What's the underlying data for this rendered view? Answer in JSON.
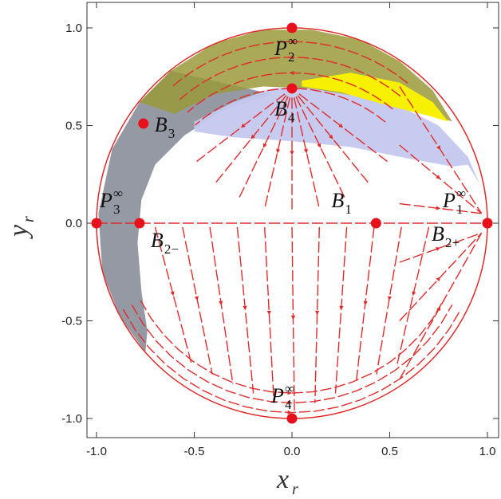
{
  "chart_data": {
    "type": "scatter",
    "title": "",
    "xlabel": {
      "main": "x",
      "sub": "r"
    },
    "ylabel": {
      "main": "y",
      "sub": "r"
    },
    "xlim": [
      -1.05,
      1.05
    ],
    "ylim": [
      -1.05,
      1.05
    ],
    "xticks": [
      "-1.0",
      "-0.5",
      "0.0",
      "0.5",
      "1.0"
    ],
    "xtick_values": [
      -1.0,
      -0.5,
      0.0,
      0.5,
      1.0
    ],
    "yticks": [
      "1.0",
      "0.5",
      "0.0",
      "-0.5",
      "-1.0"
    ],
    "ytick_values": [
      1.0,
      0.5,
      0.0,
      -0.5,
      -1.0
    ],
    "grid": false,
    "boundary": "unit circle",
    "colors": {
      "stream": "#e02b2b",
      "point": "#e8101a",
      "olive_region": "#9a9a3a",
      "yellow_region": "#f7f000",
      "lavender_region": "#c4c8ef",
      "gray_region": "#8e939e"
    },
    "critical_points": [
      {
        "name": "P",
        "sup": "∞",
        "sub": "1",
        "x": 1.0,
        "y": 0.0,
        "label_pos": "upper-left"
      },
      {
        "name": "P",
        "sup": "∞",
        "sub": "2",
        "x": 0.0,
        "y": 1.0,
        "label_pos": "below"
      },
      {
        "name": "P",
        "sup": "∞",
        "sub": "3",
        "x": -1.0,
        "y": 0.0,
        "label_pos": "upper-right"
      },
      {
        "name": "P",
        "sup": "∞",
        "sub": "4",
        "x": 0.0,
        "y": -1.0,
        "label_pos": "above"
      },
      {
        "name": "B",
        "sup": "",
        "sub": "1",
        "x": 0.43,
        "y": 0.0,
        "label_pos": "upper-left"
      },
      {
        "name": "B",
        "sup": "",
        "sub": "2−",
        "x": -0.78,
        "y": 0.0,
        "label_pos": "lower-right"
      },
      {
        "name": "B",
        "sup": "",
        "sub": "2+",
        "x": 1.0,
        "y": 0.0,
        "label_pos": "lower-left"
      },
      {
        "name": "B",
        "sup": "",
        "sub": "3",
        "x": -0.76,
        "y": 0.51,
        "label_pos": "right"
      },
      {
        "name": "B",
        "sup": "",
        "sub": "4",
        "x": 0.0,
        "y": 0.69,
        "label_pos": "below"
      }
    ]
  }
}
